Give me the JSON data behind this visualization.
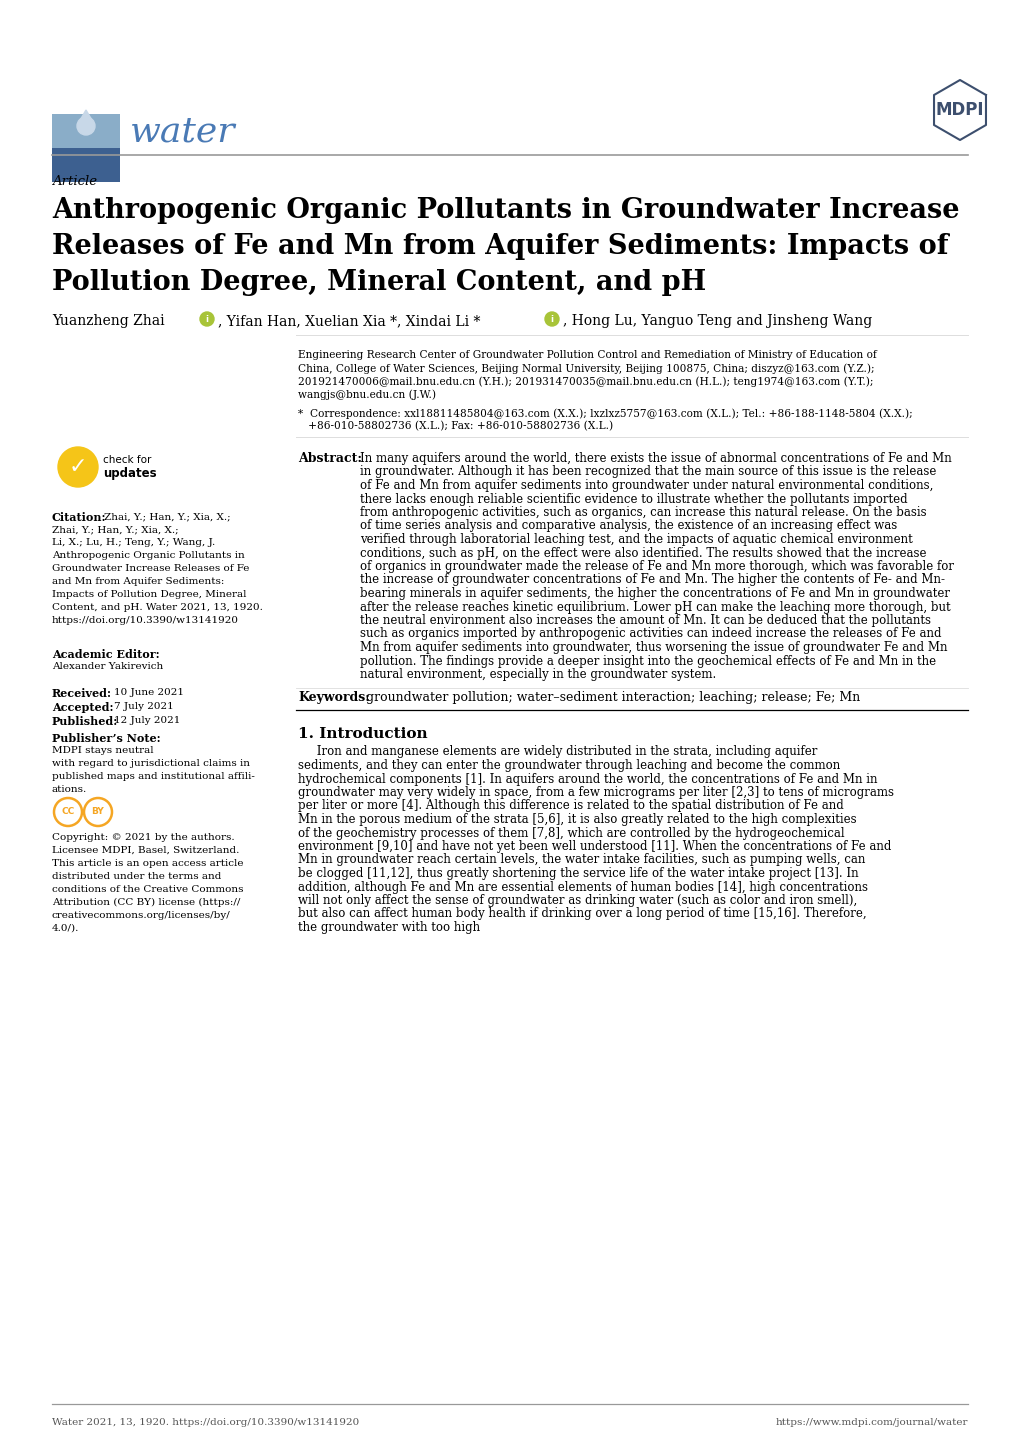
{
  "bg_color": "#ffffff",
  "journal_color": "#4a7ab5",
  "mdpi_color": "#3d4f6e",
  "water_box_top": "#7a9ec0",
  "water_box_bot": "#3d5f8a",
  "article_label": "Article",
  "title_line1": "Anthropogenic Organic Pollutants in Groundwater Increase",
  "title_line2": "Releases of Fe and Mn from Aquifer Sediments: Impacts of",
  "title_line3": "Pollution Degree, Mineral Content, and pH",
  "affiliation1": "Engineering Research Center of Groundwater Pollution Control and Remediation of Ministry of Education of",
  "affiliation2": "China, College of Water Sciences, Beijing Normal University, Beijing 100875, China; diszyz@163.com (Y.Z.);",
  "affiliation3": "201921470006@mail.bnu.edu.cn (Y.H.); 201931470035@mail.bnu.edu.cn (H.L.); teng1974@163.com (Y.T.);",
  "affiliation4": "wangjs@bnu.edu.cn (J.W.)",
  "corr1": "*  Correspondence: xxl18811485804@163.com (X.X.); lxzlxz5757@163.com (X.L.); Tel.: +86-188-1148-5804 (X.X.);",
  "corr2": "   +86-010-58802736 (X.L.); Fax: +86-010-58802736 (X.L.)",
  "abstract_body": "In many aquifers around the world, there exists the issue of abnormal concentrations of Fe and Mn in groundwater. Although it has been recognized that the main source of this issue is the release of Fe and Mn from aquifer sediments into groundwater under natural environmental conditions, there lacks enough reliable scientific evidence to illustrate whether the pollutants imported from anthropogenic activities, such as organics, can increase this natural release. On the basis of time series analysis and comparative analysis, the existence of an increasing effect was verified through laboratorial leaching test, and the impacts of aquatic chemical environment conditions, such as pH, on the effect were also identified. The results showed that the increase of organics in groundwater made the release of Fe and Mn more thorough, which was favorable for the increase of groundwater concentrations of Fe and Mn. The higher the contents of Fe- and Mn-bearing minerals in aquifer sediments, the higher the concentrations of Fe and Mn in groundwater after the release reaches kinetic equilibrium. Lower pH can make the leaching more thorough, but the neutral environment also increases the amount of Mn. It can be deduced that the pollutants such as organics imported by anthropogenic activities can indeed increase the releases of Fe and Mn from aquifer sediments into groundwater, thus worsening the issue of groundwater Fe and Mn pollution. The findings provide a deeper insight into the geochemical effects of Fe and Mn in the natural environment, especially in the groundwater system.",
  "keywords_text": "groundwater pollution; water–sediment interaction; leaching; release; Fe; Mn",
  "citation_body": "Zhai, Y.; Han, Y.; Xia, X.;\nLi, X.; Lu, H.; Teng, Y.; Wang, J.\nAnthropogenic Organic Pollutants in\nGroundwater Increase Releases of Fe\nand Mn from Aquifer Sediments:\nImpacts of Pollution Degree, Mineral\nContent, and pH. Water 2021, 13, 1920.\nhttps://doi.org/10.3390/w13141920",
  "editor_text": "Alexander Yakirevich",
  "received_text": "10 June 2021",
  "accepted_text": "7 July 2021",
  "published_text": "12 July 2021",
  "pub_note": "MDPI stays neutral\nwith regard to jurisdictional claims in\npublished maps and institutional affili-\nations.",
  "copyright_text": "Copyright: © 2021 by the authors.\nLicensee MDPI, Basel, Switzerland.\nThis article is an open access article\ndistributed under the terms and\nconditions of the Creative Commons\nAttribution (CC BY) license (https://\ncreativecommons.org/licenses/by/\n4.0/).",
  "intro_text": "     Iron and manganese elements are widely distributed in the strata, including aquifer sediments, and they can enter the groundwater through leaching and become the common hydrochemical components [1]. In aquifers around the world, the concentrations of Fe and Mn in groundwater may very widely in space, from a few micrograms per liter [2,3] to tens of micrograms per liter or more [4]. Although this difference is related to the spatial distribution of Fe and Mn in the porous medium of the strata [5,6], it is also greatly related to the high complexities of the geochemistry processes of them [7,8], which are controlled by the hydrogeochemical environment [9,10] and have not yet been well understood [11]. When the concentrations of Fe and Mn in groundwater reach certain levels, the water intake facilities, such as pumping wells, can be clogged [11,12], thus greatly shortening the service life of the water intake project [13]. In addition, although Fe and Mn are essential elements of human bodies [14], high concentrations will not only affect the sense of groundwater as drinking water (such as color and iron smell), but also can affect human body health if drinking over a long period of time [15,16]. Therefore, the groundwater with too high",
  "footer_left": "Water 2021, 13, 1920. https://doi.org/10.3390/w13141920",
  "footer_right": "https://www.mdpi.com/journal/water"
}
